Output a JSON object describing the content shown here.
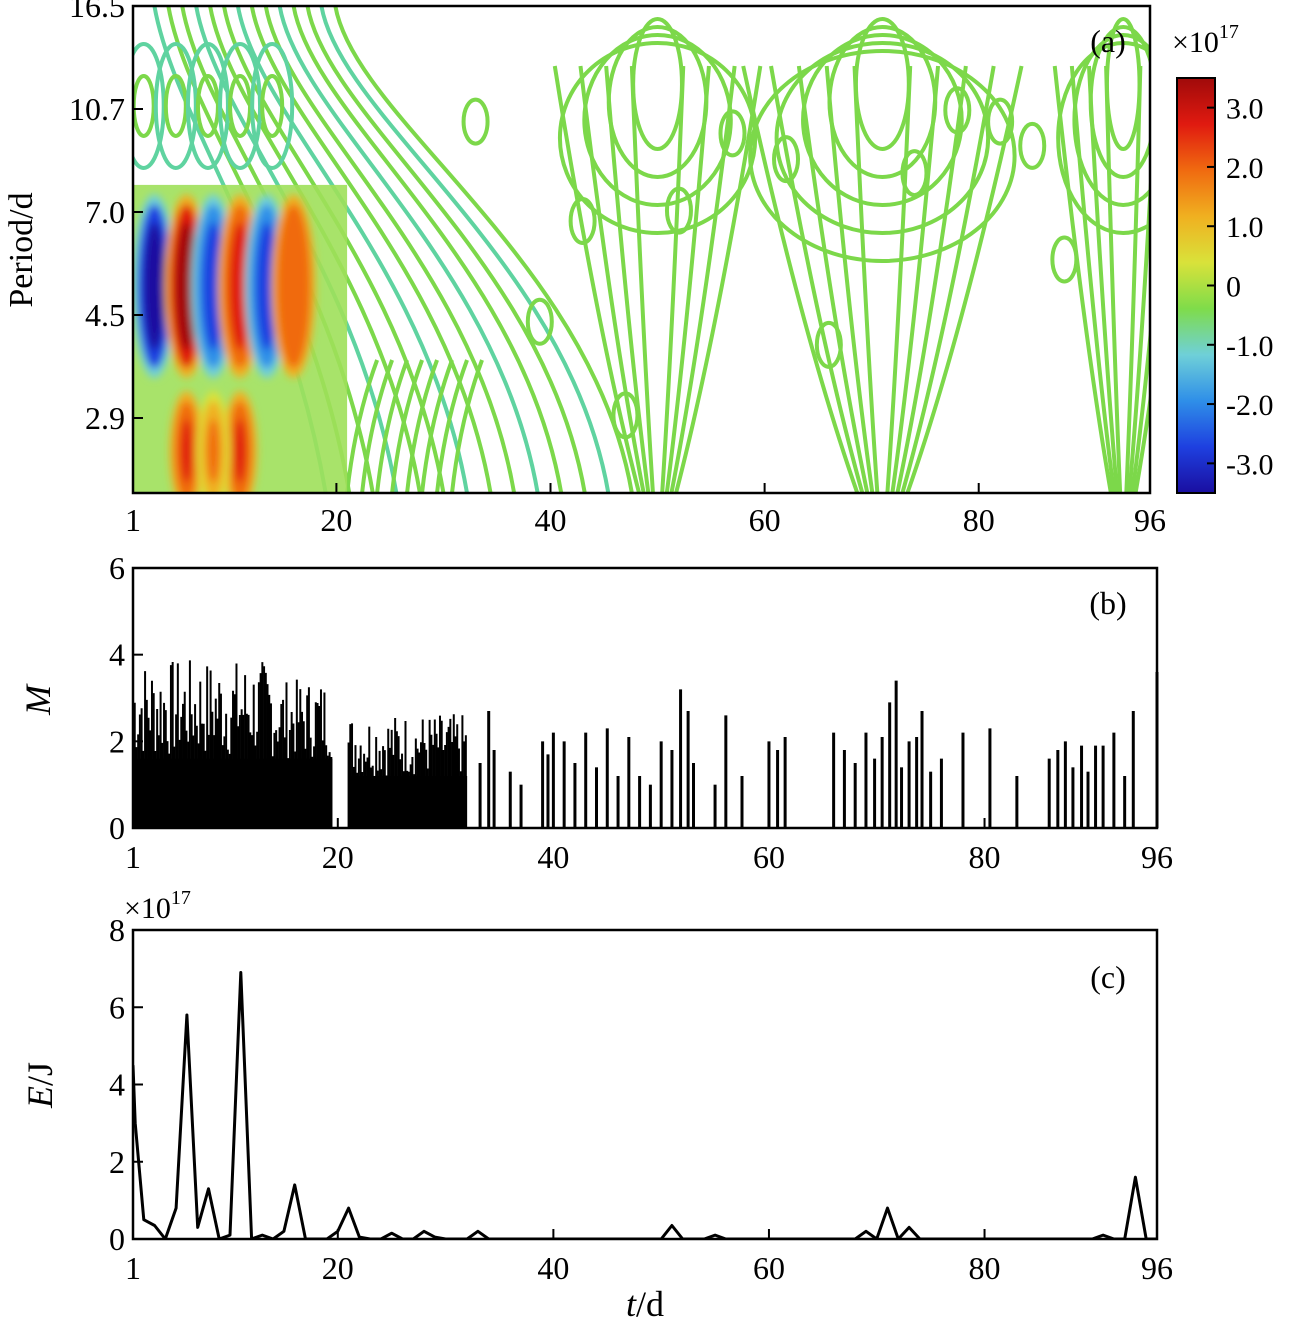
{
  "chart_data": [
    {
      "type": "heatmap",
      "panel_label": "(a)",
      "ylabel": "Period/d",
      "x_ticks": [
        "1",
        "20",
        "40",
        "60",
        "80",
        "96"
      ],
      "xlim": [
        1,
        96
      ],
      "y_ticks": [
        "16.5",
        "10.7",
        "7.0",
        "4.5",
        "2.9"
      ],
      "colorbar": {
        "multiplier": "×10",
        "exponent": "17",
        "ticks": [
          "3.0",
          "2.0",
          "1.0",
          "0",
          "-1.0",
          "-2.0",
          "-3.0"
        ],
        "range": [
          -3.5,
          3.5
        ],
        "colors": [
          "#1a0ea0",
          "#1e40e0",
          "#2f8fe8",
          "#6fd0d8",
          "#7fdc4a",
          "#d9e23a",
          "#f0b020",
          "#f06a10",
          "#e01a10",
          "#a00a0a"
        ]
      },
      "features": [
        {
          "t": 3,
          "period": 4.9,
          "amp": -3.2
        },
        {
          "t": 6,
          "period": 4.9,
          "amp": 3.3
        },
        {
          "t": 8.5,
          "period": 4.9,
          "amp": -3.1
        },
        {
          "t": 11,
          "period": 4.9,
          "amp": 3.0
        },
        {
          "t": 13.5,
          "period": 4.9,
          "amp": -2.6
        },
        {
          "t": 16,
          "period": 4.9,
          "amp": 2.2
        },
        {
          "t": 6,
          "period": 2.4,
          "amp": 3.0
        },
        {
          "t": 11,
          "period": 2.4,
          "amp": 2.8
        },
        {
          "t": 8.5,
          "period": 2.4,
          "amp": 1.6
        }
      ]
    },
    {
      "type": "bar",
      "panel_label": "(b)",
      "ylabel": "M",
      "x_ticks": [
        "1",
        "20",
        "40",
        "60",
        "80",
        "96"
      ],
      "xlim": [
        1,
        96
      ],
      "y_ticks": [
        "0",
        "2",
        "4",
        "6"
      ],
      "ylim": [
        0,
        6
      ],
      "dense_ranges": [
        [
          1,
          19.5,
          1.6,
          3.9
        ],
        [
          21,
          32,
          1.2,
          3.0
        ]
      ],
      "events": [
        [
          33.2,
          1.5
        ],
        [
          34,
          2.7
        ],
        [
          34.5,
          1.8
        ],
        [
          36,
          1.3
        ],
        [
          37,
          1.0
        ],
        [
          39,
          2.0
        ],
        [
          39.5,
          1.7
        ],
        [
          40,
          2.2
        ],
        [
          41,
          2.0
        ],
        [
          42,
          1.5
        ],
        [
          43,
          2.2
        ],
        [
          44,
          1.4
        ],
        [
          45,
          2.3
        ],
        [
          46,
          1.2
        ],
        [
          47,
          2.1
        ],
        [
          48,
          1.2
        ],
        [
          49,
          1.0
        ],
        [
          50,
          2.0
        ],
        [
          51,
          1.8
        ],
        [
          51.8,
          3.2
        ],
        [
          52.5,
          2.7
        ],
        [
          53,
          1.5
        ],
        [
          55,
          1.0
        ],
        [
          56,
          2.6
        ],
        [
          57.5,
          1.2
        ],
        [
          60,
          2.0
        ],
        [
          60.8,
          1.8
        ],
        [
          61.5,
          2.1
        ],
        [
          66,
          2.2
        ],
        [
          67,
          1.8
        ],
        [
          68,
          1.5
        ],
        [
          69,
          2.2
        ],
        [
          69.8,
          1.6
        ],
        [
          70.5,
          2.1
        ],
        [
          71.2,
          2.9
        ],
        [
          71.8,
          3.4
        ],
        [
          72.3,
          1.4
        ],
        [
          73,
          2.0
        ],
        [
          73.7,
          2.1
        ],
        [
          74.2,
          2.7
        ],
        [
          75,
          1.3
        ],
        [
          76,
          1.6
        ],
        [
          78,
          2.2
        ],
        [
          80.5,
          2.3
        ],
        [
          83,
          1.2
        ],
        [
          86,
          1.6
        ],
        [
          86.8,
          1.8
        ],
        [
          87.5,
          2.0
        ],
        [
          88.2,
          1.4
        ],
        [
          89,
          1.9
        ],
        [
          89.6,
          1.3
        ],
        [
          90.3,
          1.9
        ],
        [
          91,
          1.9
        ],
        [
          92,
          2.2
        ],
        [
          93,
          1.2
        ],
        [
          93.8,
          2.7
        ],
        [
          96,
          3.6
        ]
      ]
    },
    {
      "type": "line",
      "panel_label": "(c)",
      "ylabel_italic": "E",
      "ylabel_unit": "/J",
      "xlabel_italic": "t",
      "xlabel_unit": "/d",
      "y_multiplier": "×10",
      "y_exponent": "17",
      "x_ticks": [
        "1",
        "20",
        "40",
        "60",
        "80",
        "96"
      ],
      "xlim": [
        1,
        96
      ],
      "y_ticks": [
        "0",
        "2",
        "4",
        "6",
        "8"
      ],
      "ylim": [
        0,
        8
      ],
      "x": [
        1,
        1.2,
        2,
        3,
        4,
        5,
        6,
        7,
        8,
        9,
        10,
        11,
        12,
        13,
        14,
        15,
        16,
        17,
        18,
        19,
        20,
        21,
        22,
        23,
        24,
        25,
        26,
        27,
        28,
        29,
        30,
        31,
        32,
        33,
        34,
        35,
        40,
        45,
        50,
        51,
        52,
        53,
        54,
        55,
        56,
        57,
        60,
        65,
        68,
        69,
        70,
        71,
        72,
        73,
        74,
        75,
        80,
        85,
        90,
        91,
        92,
        93,
        94,
        95,
        96
      ],
      "y": [
        4.5,
        3.0,
        0.5,
        0.35,
        0.0,
        0.8,
        5.8,
        0.3,
        1.3,
        0.0,
        0.1,
        6.9,
        0.0,
        0.1,
        0.0,
        0.2,
        1.4,
        0.0,
        0.0,
        0.0,
        0.2,
        0.8,
        0.05,
        0.0,
        0.0,
        0.15,
        0.0,
        0.0,
        0.2,
        0.05,
        0.0,
        0.0,
        0.0,
        0.2,
        0.0,
        0.0,
        0.0,
        0.0,
        0.0,
        0.35,
        0.0,
        0.0,
        0.0,
        0.1,
        0.0,
        0.0,
        0.0,
        0.0,
        0.0,
        0.2,
        0.0,
        0.8,
        0.0,
        0.3,
        0.0,
        0.0,
        0.0,
        0.0,
        0.0,
        0.1,
        0.0,
        0.0,
        1.6,
        0.0,
        0.0
      ]
    }
  ]
}
